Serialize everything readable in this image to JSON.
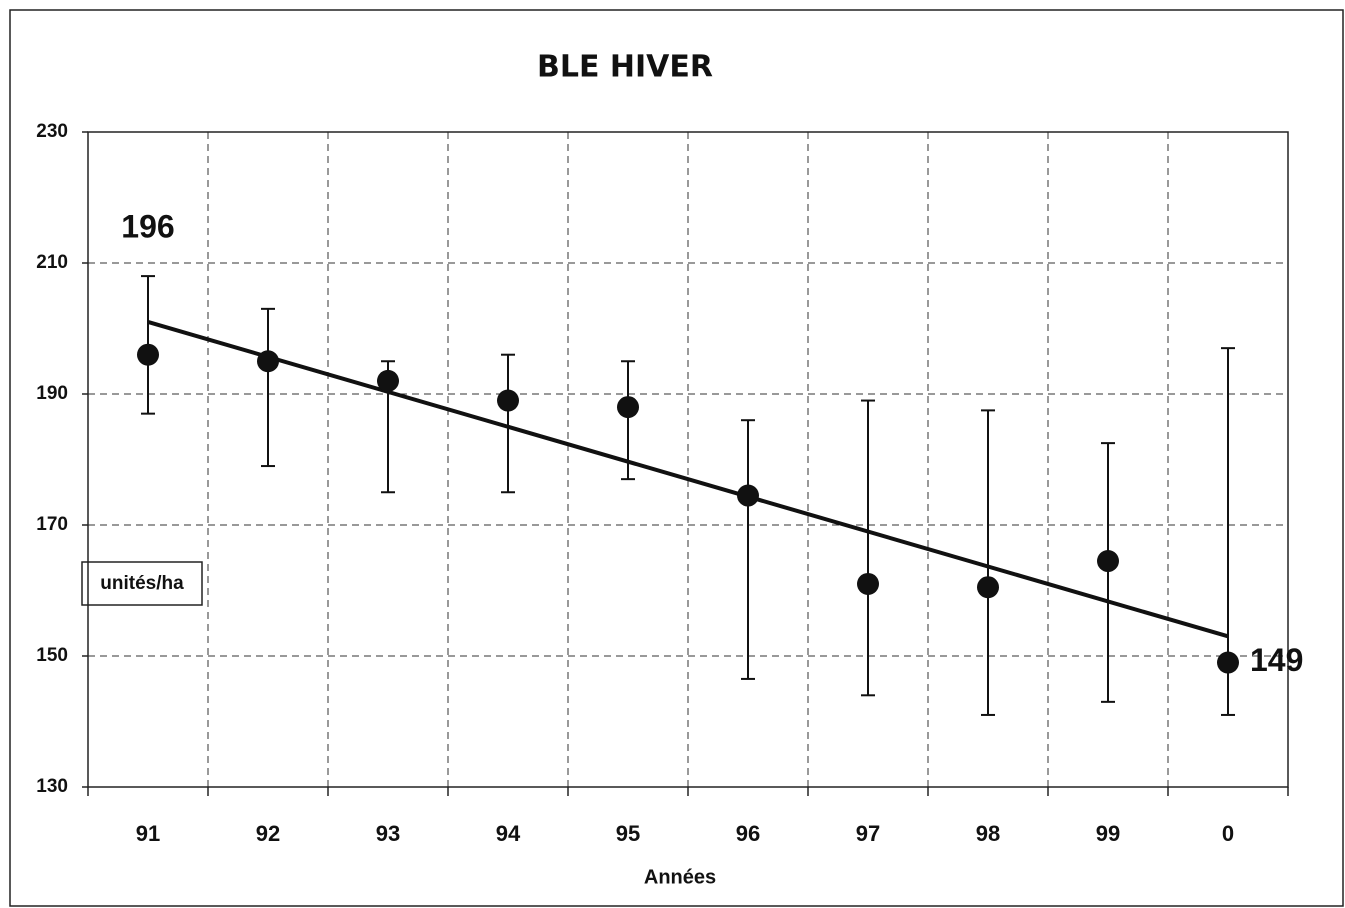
{
  "chart_data": {
    "type": "errorbar",
    "title": "BLE HIVER",
    "x_label": "Années",
    "y_label": "unités/ha",
    "categories": [
      "91",
      "92",
      "93",
      "94",
      "95",
      "96",
      "97",
      "98",
      "99",
      "0"
    ],
    "values": [
      196,
      195,
      192,
      189,
      188,
      174.5,
      161,
      160.5,
      164.5,
      149
    ],
    "error_plus": [
      12,
      8,
      3,
      7,
      7,
      11.5,
      28,
      27,
      18,
      48
    ],
    "error_minus": [
      9,
      16,
      17,
      14,
      11,
      28,
      17,
      19.5,
      21.5,
      8
    ],
    "value_labels": [
      "196",
      null,
      null,
      null,
      null,
      null,
      null,
      null,
      null,
      "149"
    ],
    "trend": {
      "from": 201,
      "to": 153
    },
    "color": "#111111",
    "ylim": [
      130,
      230
    ],
    "yticks": [
      130,
      150,
      170,
      190,
      210,
      230
    ],
    "grid": true
  }
}
